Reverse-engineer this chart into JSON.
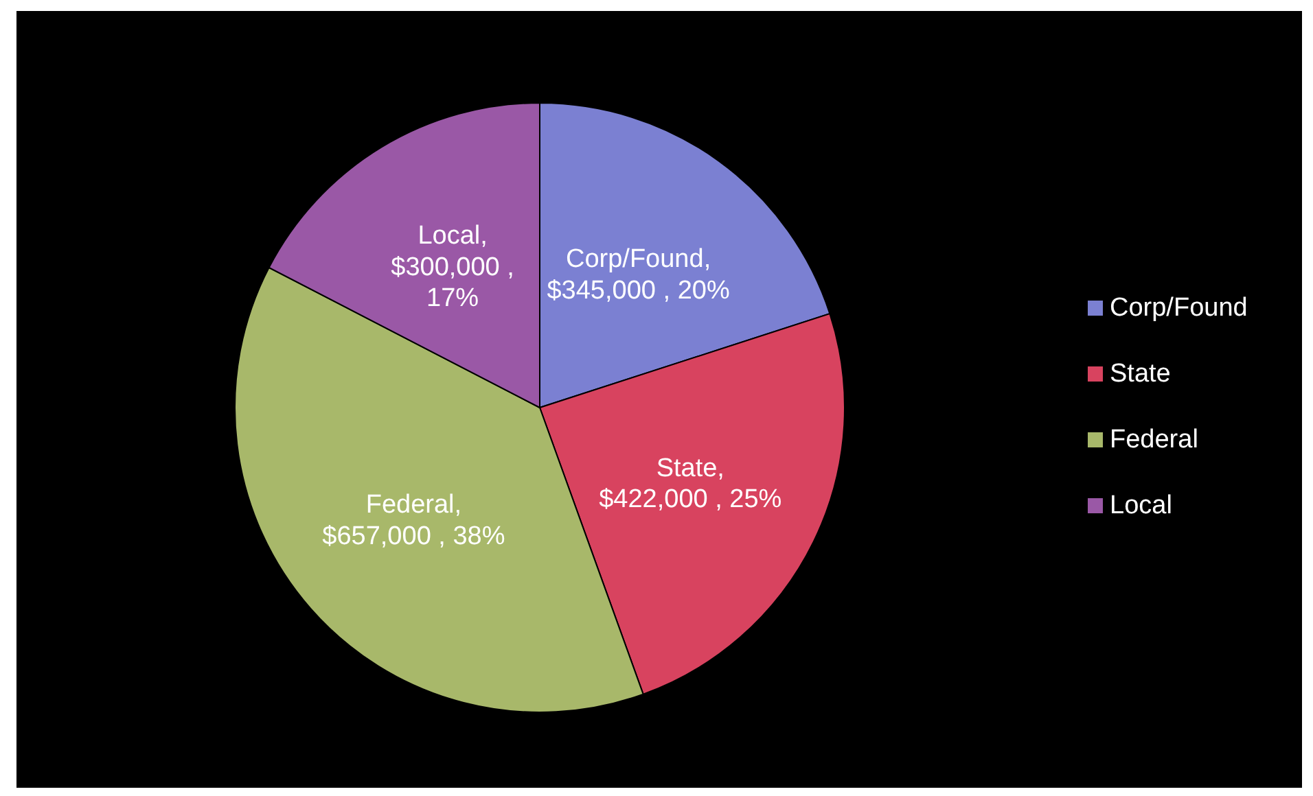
{
  "chart_data": {
    "type": "pie",
    "categories": [
      "Corp/Found",
      "State",
      "Federal",
      "Local"
    ],
    "values": [
      345000,
      422000,
      657000,
      300000
    ],
    "colors": [
      "#7b80d2",
      "#d8435f",
      "#a8b86a",
      "#9a58a6"
    ],
    "value_labels": [
      "Corp/Found, $345,000 , 20%",
      "State, $422,000 , 25%",
      "Federal, $657,000 , 38%",
      "Local, $300,000 , 17%"
    ],
    "legend": "right"
  }
}
